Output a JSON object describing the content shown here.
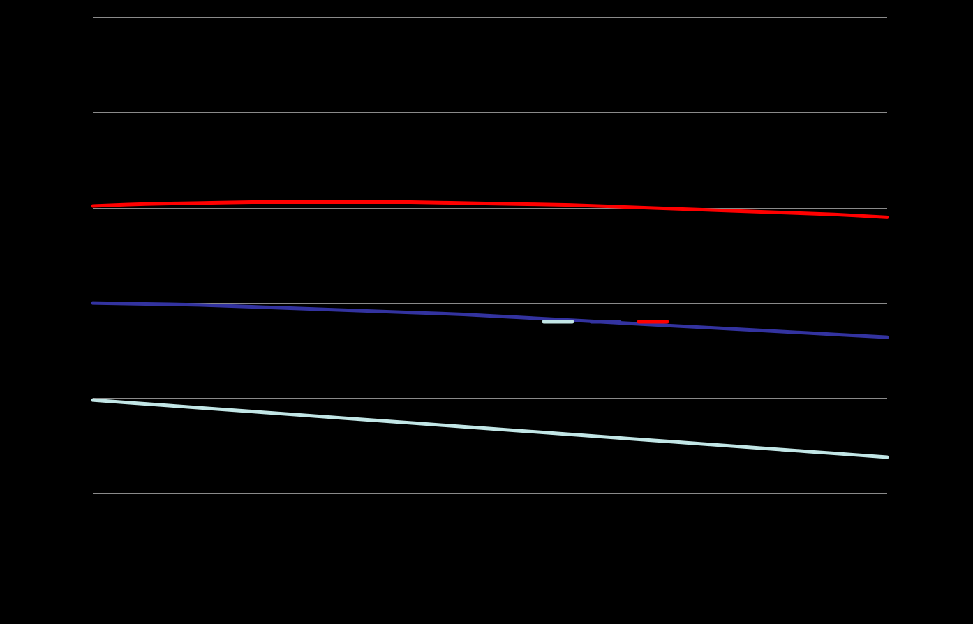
{
  "chart_data": {
    "type": "line",
    "title": "",
    "xlabel": "",
    "ylabel": "",
    "x": [
      0,
      1,
      2,
      3,
      4,
      5,
      6,
      7,
      8,
      9,
      10,
      11,
      12,
      13,
      14,
      15
    ],
    "xlim": [
      0,
      15
    ],
    "ylim": [
      0,
      5.5
    ],
    "yticks": [
      0.5,
      1.5,
      2.5,
      3.5,
      4.5,
      5.5
    ],
    "grid": true,
    "legend": {
      "position": "center-right",
      "entries": [
        "",
        "",
        ""
      ]
    },
    "series": [
      {
        "color": "#c2e6e6",
        "values": [
          1.48,
          1.44,
          1.4,
          1.36,
          1.32,
          1.28,
          1.24,
          1.2,
          1.16,
          1.12,
          1.08,
          1.04,
          1.0,
          0.96,
          0.92,
          0.88
        ]
      },
      {
        "color": "#3333a0",
        "values": [
          2.5,
          2.49,
          2.48,
          2.46,
          2.44,
          2.42,
          2.4,
          2.38,
          2.35,
          2.32,
          2.29,
          2.26,
          2.23,
          2.2,
          2.17,
          2.14
        ]
      },
      {
        "color": "#ff0000",
        "values": [
          3.52,
          3.54,
          3.55,
          3.56,
          3.56,
          3.56,
          3.56,
          3.55,
          3.54,
          3.53,
          3.51,
          3.49,
          3.47,
          3.45,
          3.43,
          3.4
        ]
      }
    ]
  },
  "colors": {
    "background": "#000000",
    "grid": "#8a8a8a"
  }
}
